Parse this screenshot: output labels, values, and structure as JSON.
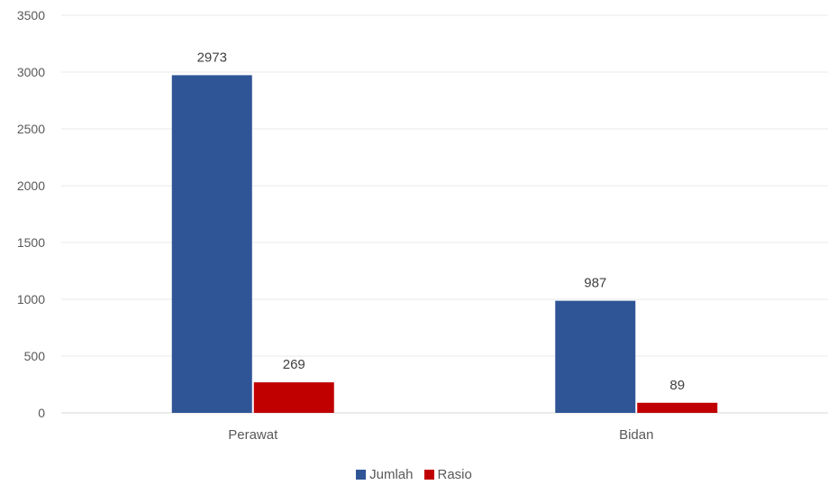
{
  "chart_data": {
    "type": "bar",
    "categories": [
      "Perawat",
      "Bidan"
    ],
    "series": [
      {
        "name": "Jumlah",
        "values": [
          2973,
          987
        ],
        "color": "#2F5597"
      },
      {
        "name": "Rasio",
        "values": [
          269,
          89
        ],
        "color": "#C00000"
      }
    ],
    "ylim": [
      0,
      3500
    ],
    "yticks": [
      0,
      500,
      1000,
      1500,
      2000,
      2500,
      3000,
      3500
    ],
    "grid": true,
    "legend_position": "bottom",
    "data_labels": true
  }
}
